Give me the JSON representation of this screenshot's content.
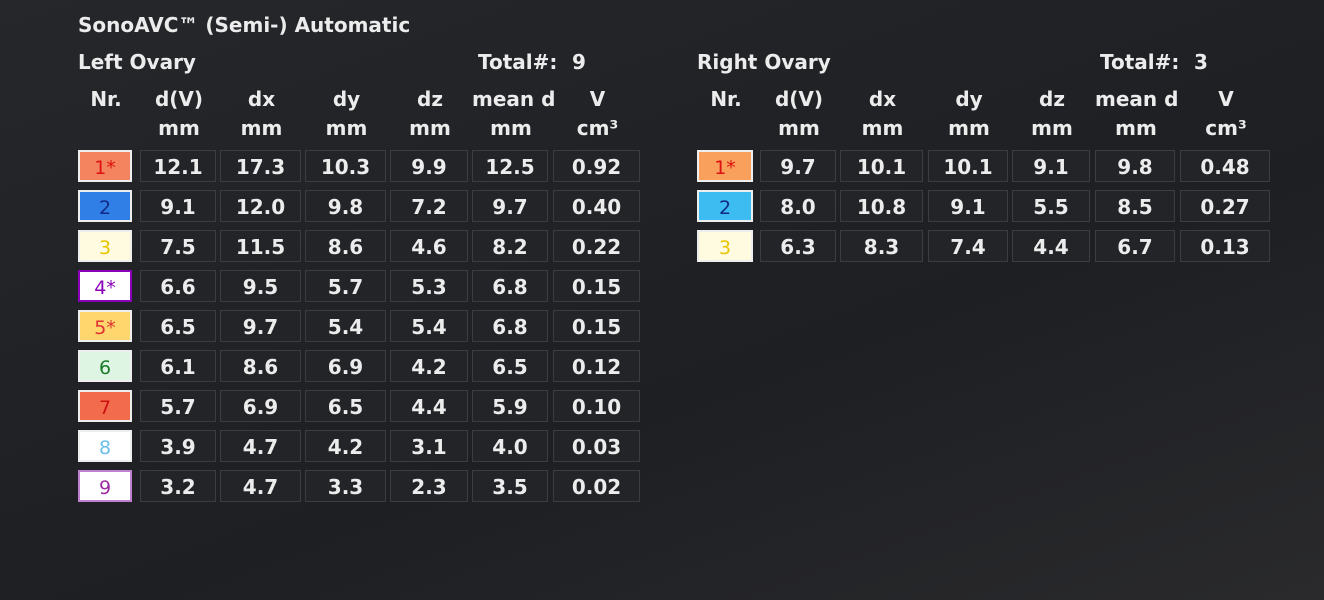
{
  "title": "SonoAVC™ (Semi-) Automatic",
  "left": {
    "name": "Left Ovary",
    "total_label": "Total#:",
    "total": "9",
    "headers": [
      "Nr.",
      "d(V)",
      "dx",
      "dy",
      "dz",
      "mean d",
      "V"
    ],
    "units": [
      "mm",
      "mm",
      "mm",
      "mm",
      "mm",
      "cm³"
    ],
    "rows": [
      [
        "1*",
        "12.1",
        "17.3",
        "10.3",
        "9.9",
        "12.5",
        "0.92"
      ],
      [
        "2",
        "9.1",
        "12.0",
        "9.8",
        "7.2",
        "9.7",
        "0.40"
      ],
      [
        "3",
        "7.5",
        "11.5",
        "8.6",
        "4.6",
        "8.2",
        "0.22"
      ],
      [
        "4*",
        "6.6",
        "9.5",
        "5.7",
        "5.3",
        "6.8",
        "0.15"
      ],
      [
        "5*",
        "6.5",
        "9.7",
        "5.4",
        "5.4",
        "6.8",
        "0.15"
      ],
      [
        "6",
        "6.1",
        "8.6",
        "6.9",
        "4.2",
        "6.5",
        "0.12"
      ],
      [
        "7",
        "5.7",
        "6.9",
        "6.5",
        "4.4",
        "5.9",
        "0.10"
      ],
      [
        "8",
        "3.9",
        "4.7",
        "4.2",
        "3.1",
        "4.0",
        "0.03"
      ],
      [
        "9",
        "3.2",
        "4.7",
        "3.3",
        "2.3",
        "3.5",
        "0.02"
      ]
    ]
  },
  "right": {
    "name": "Right Ovary",
    "total_label": "Total#:",
    "total": "3",
    "headers": [
      "Nr.",
      "d(V)",
      "dx",
      "dy",
      "dz",
      "mean d",
      "V"
    ],
    "units": [
      "mm",
      "mm",
      "mm",
      "mm",
      "mm",
      "cm³"
    ],
    "rows": [
      [
        "1*",
        "9.7",
        "10.1",
        "10.1",
        "9.1",
        "9.8",
        "0.48"
      ],
      [
        "2",
        "8.0",
        "10.8",
        "9.1",
        "5.5",
        "8.5",
        "0.27"
      ],
      [
        "3",
        "6.3",
        "8.3",
        "7.4",
        "4.4",
        "6.7",
        "0.13"
      ]
    ]
  }
}
